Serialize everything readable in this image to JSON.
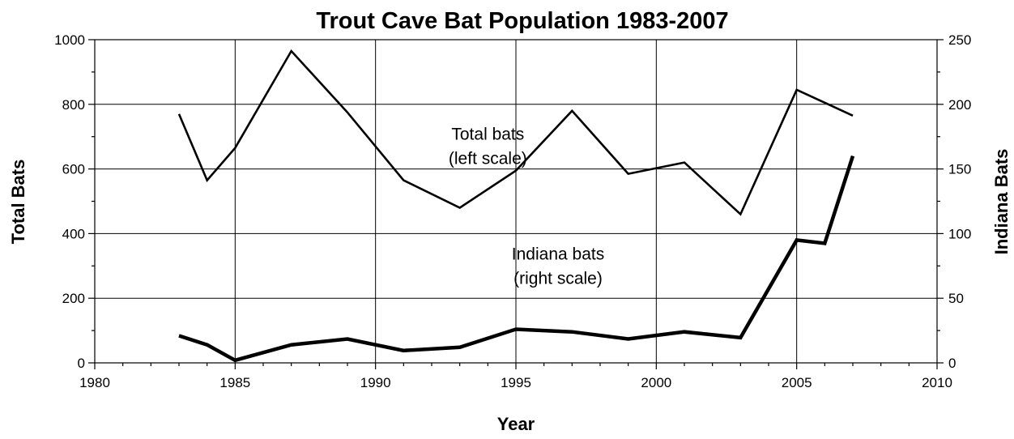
{
  "chart_data": {
    "type": "line",
    "title": "Trout Cave Bat Population 1983-2007",
    "xlabel": "Year",
    "ylabel_left": "Total Bats",
    "ylabel_right": "Indiana Bats",
    "xlim": [
      1980,
      2010
    ],
    "ylim_left": [
      0,
      1000
    ],
    "ylim_right": [
      0,
      250
    ],
    "x_ticks": [
      "1980",
      "1985",
      "1990",
      "1995",
      "2000",
      "2005",
      "2010"
    ],
    "y_left_ticks": [
      "0",
      "200",
      "400",
      "600",
      "800",
      "1000"
    ],
    "y_right_ticks": [
      "0",
      "50",
      "100",
      "150",
      "200",
      "250"
    ],
    "grid": true,
    "series": [
      {
        "axis": "left",
        "x": [
          1983,
          1984,
          1985,
          1987,
          1989,
          1991,
          1993,
          1995,
          1997,
          1999,
          2001,
          2003,
          2005,
          2007
        ],
        "values": [
          770,
          565,
          665,
          965,
          775,
          565,
          480,
          595,
          780,
          585,
          620,
          460,
          845,
          765
        ]
      },
      {
        "axis": "right",
        "x": [
          1983,
          1984,
          1985,
          1987,
          1989,
          1991,
          1993,
          1995,
          1997,
          1999,
          2001,
          2003,
          2005,
          2006,
          2007
        ],
        "values": [
          21,
          14,
          2,
          14,
          18.5,
          9.5,
          12,
          26,
          24,
          18.5,
          24,
          19.5,
          95,
          92.5,
          160
        ]
      }
    ],
    "annotations": [
      {
        "lines": [
          "Total bats",
          "(left scale)"
        ],
        "x": 1994,
        "y_left": 690
      },
      {
        "lines": [
          "Indiana bats",
          "(right scale)"
        ],
        "x": 1996.5,
        "y_left": 320
      }
    ]
  }
}
